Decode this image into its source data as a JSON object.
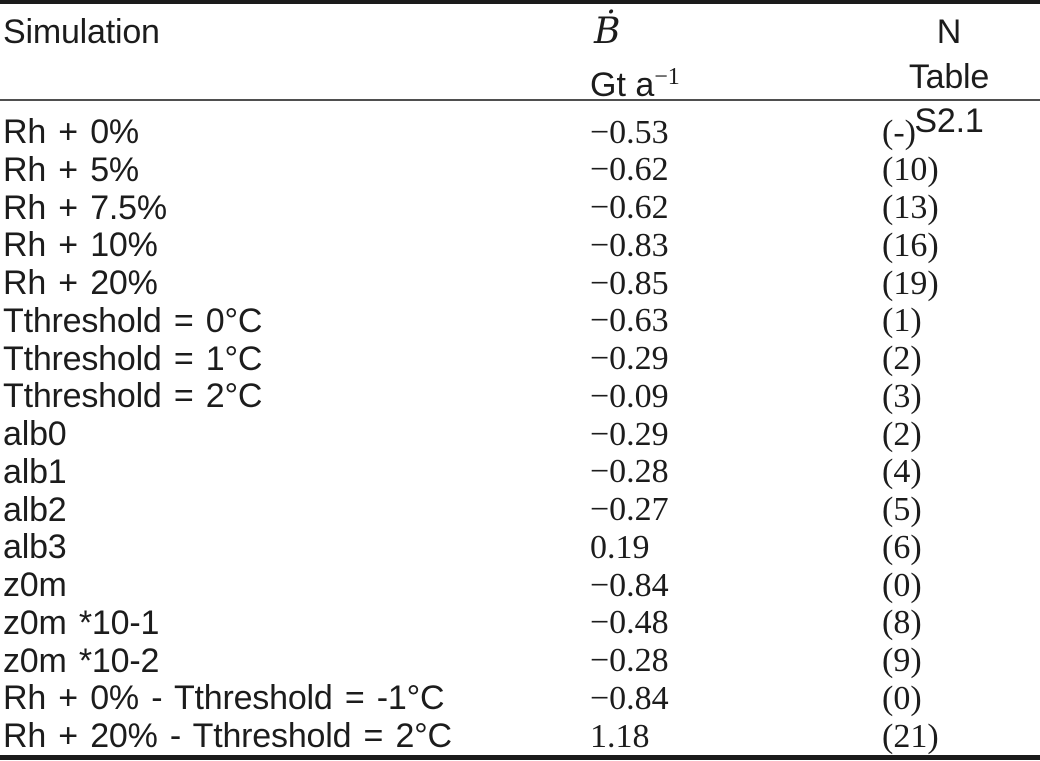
{
  "colors": {
    "background": "#ffffff",
    "text": "#1c1c1c",
    "thick_rule": "#1b1b1b",
    "thin_rule": "#4f4f4f"
  },
  "table": {
    "header": {
      "col1": "Simulation",
      "col2_line1": "Ḃ",
      "col2_line2_base": "Gt a",
      "col2_line2_sup": "−1",
      "col3_line1": "N",
      "col3_line2": "Table S2.1"
    },
    "rows": [
      {
        "simulation": "Rh + 0%",
        "b": "−0.53",
        "n": "(-)"
      },
      {
        "simulation": "Rh + 5%",
        "b": "−0.62",
        "n": "(10)"
      },
      {
        "simulation": "Rh + 7.5%",
        "b": "−0.62",
        "n": "(13)"
      },
      {
        "simulation": "Rh + 10%",
        "b": "−0.83",
        "n": "(16)"
      },
      {
        "simulation": "Rh + 20%",
        "b": "−0.85",
        "n": "(19)"
      },
      {
        "simulation": "Tthreshold = 0°C",
        "b": "−0.63",
        "n": "(1)"
      },
      {
        "simulation": "Tthreshold = 1°C",
        "b": "−0.29",
        "n": "(2)"
      },
      {
        "simulation": "Tthreshold = 2°C",
        "b": "−0.09",
        "n": "(3)"
      },
      {
        "simulation": "alb0",
        "b": "−0.29",
        "n": "(2)"
      },
      {
        "simulation": "alb1",
        "b": "−0.28",
        "n": "(4)"
      },
      {
        "simulation": "alb2",
        "b": "−0.27",
        "n": "(5)"
      },
      {
        "simulation": "alb3",
        "b": "0.19",
        "n": "(6)"
      },
      {
        "simulation": "z0m",
        "b": "−0.84",
        "n": "(0)"
      },
      {
        "simulation": "z0m *10-1",
        "b": "−0.48",
        "n": "(8)"
      },
      {
        "simulation": "z0m *10-2",
        "b": "−0.28",
        "n": "(9)"
      },
      {
        "simulation": "Rh + 0% - Tthreshold = -1°C",
        "b": "−0.84",
        "n": "(0)"
      },
      {
        "simulation": "Rh + 20% - Tthreshold = 2°C",
        "b": "1.18",
        "n": "(21)"
      }
    ]
  }
}
